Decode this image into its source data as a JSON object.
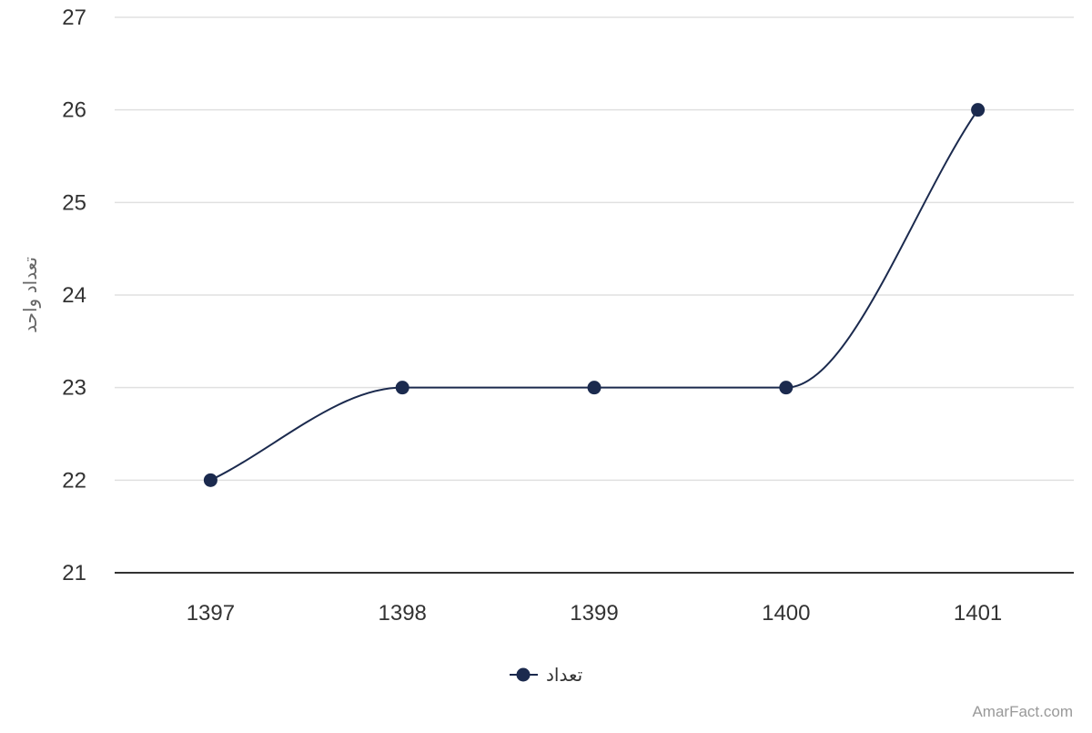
{
  "chart_data": {
    "type": "line",
    "smooth": true,
    "categories": [
      "1397",
      "1398",
      "1399",
      "1400",
      "1401"
    ],
    "series": [
      {
        "name": "تعداد",
        "values": [
          22,
          23,
          23,
          23,
          26
        ],
        "color": "#1b2a4e"
      }
    ],
    "xlabel": "",
    "ylabel": "تعداد واحد",
    "ylim": [
      21,
      27
    ],
    "yticks": [
      "21",
      "22",
      "23",
      "24",
      "25",
      "26",
      "27"
    ],
    "grid": true,
    "legend_position": "bottom-center"
  },
  "colors": {
    "series": "#1b2a4e",
    "grid": "#e0e0e0",
    "axis": "#333333"
  },
  "watermark": "AmarFact.com"
}
